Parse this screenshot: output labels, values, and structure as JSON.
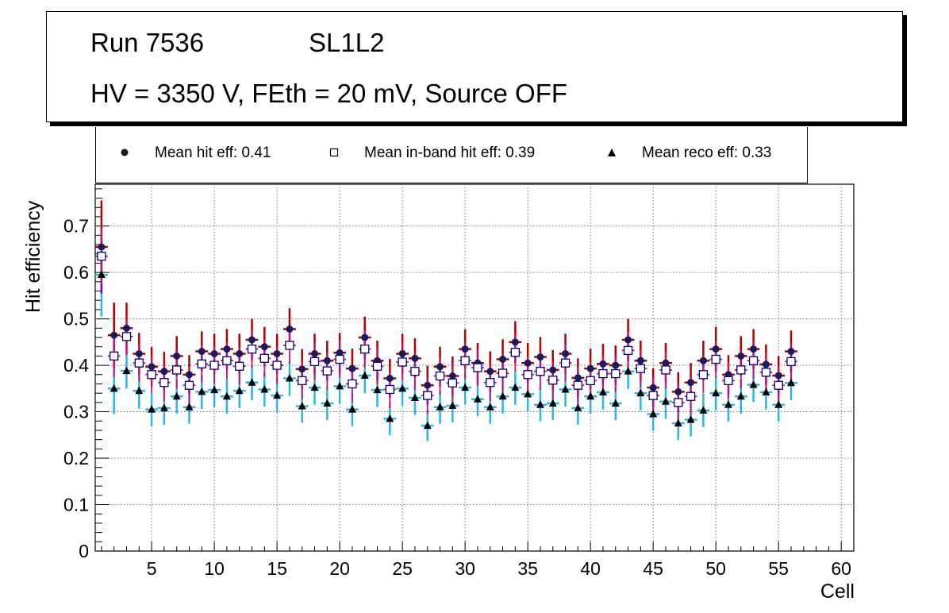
{
  "header": {
    "run": "Run 7536",
    "layer": "SL1L2",
    "conditions": "HV = 3350 V, FEth = 20 mV, Source OFF"
  },
  "legend": {
    "hit": "Mean hit  eff: 0.41",
    "inband": "Mean in-band hit eff: 0.39",
    "reco": "Mean reco eff: 0.33"
  },
  "colors": {
    "hit_marker": "#1a1a60",
    "hit_error": "#b00000",
    "hit_error_low": "#7a00b0",
    "inband_marker_edge": "#00007a",
    "inband_marker_fill": "#ffffff",
    "inband_error": "#d01060",
    "reco_marker": "#000000",
    "reco_error": "#29b6e8"
  },
  "chart_data": {
    "type": "scatter",
    "title": "Run 7536  SL1L2 — HV = 3350 V, FEth = 20 mV, Source OFF",
    "xlabel": "Cell",
    "ylabel": "Hit efficiency",
    "xlim": [
      0.5,
      61
    ],
    "ylim": [
      0,
      0.79
    ],
    "xticks": [
      5,
      10,
      15,
      20,
      25,
      30,
      35,
      40,
      45,
      50,
      55,
      60
    ],
    "yticks": [
      0,
      0.1,
      0.2,
      0.3,
      0.4,
      0.5,
      0.6,
      0.7
    ],
    "grid": true,
    "legend_position": "top",
    "x": [
      1,
      2,
      3,
      4,
      5,
      6,
      7,
      8,
      9,
      10,
      11,
      12,
      13,
      14,
      15,
      16,
      17,
      18,
      19,
      20,
      21,
      22,
      23,
      24,
      25,
      26,
      27,
      28,
      29,
      30,
      31,
      32,
      33,
      34,
      35,
      36,
      37,
      38,
      39,
      40,
      41,
      42,
      43,
      44,
      45,
      46,
      47,
      48,
      49,
      50,
      51,
      52,
      53,
      54,
      55,
      56
    ],
    "series": [
      {
        "name": "Mean hit eff",
        "marker": "filled-circle",
        "values": [
          0.655,
          0.465,
          0.48,
          0.425,
          0.397,
          0.387,
          0.42,
          0.38,
          0.43,
          0.425,
          0.435,
          0.425,
          0.455,
          0.44,
          0.425,
          0.478,
          0.392,
          0.425,
          0.41,
          0.427,
          0.393,
          0.46,
          0.41,
          0.372,
          0.425,
          0.415,
          0.357,
          0.397,
          0.377,
          0.435,
          0.405,
          0.387,
          0.413,
          0.45,
          0.405,
          0.418,
          0.39,
          0.425,
          0.373,
          0.393,
          0.403,
          0.4,
          0.455,
          0.41,
          0.352,
          0.405,
          0.343,
          0.363,
          0.41,
          0.435,
          0.38,
          0.42,
          0.435,
          0.402,
          0.378,
          0.43
        ],
        "err": [
          0.1,
          0.07,
          0.055,
          0.045,
          0.042,
          0.042,
          0.043,
          0.042,
          0.043,
          0.043,
          0.043,
          0.043,
          0.045,
          0.043,
          0.043,
          0.045,
          0.043,
          0.043,
          0.043,
          0.043,
          0.043,
          0.045,
          0.043,
          0.042,
          0.043,
          0.043,
          0.042,
          0.043,
          0.042,
          0.043,
          0.043,
          0.043,
          0.043,
          0.045,
          0.043,
          0.043,
          0.043,
          0.043,
          0.042,
          0.043,
          0.043,
          0.043,
          0.045,
          0.043,
          0.042,
          0.043,
          0.042,
          0.042,
          0.043,
          0.048,
          0.042,
          0.043,
          0.043,
          0.043,
          0.042,
          0.045
        ]
      },
      {
        "name": "Mean in-band hit eff",
        "marker": "open-square",
        "values": [
          0.635,
          0.42,
          0.462,
          0.405,
          0.38,
          0.363,
          0.39,
          0.357,
          0.403,
          0.4,
          0.41,
          0.398,
          0.435,
          0.415,
          0.4,
          0.443,
          0.367,
          0.408,
          0.388,
          0.413,
          0.36,
          0.435,
          0.398,
          0.348,
          0.407,
          0.387,
          0.335,
          0.377,
          0.362,
          0.41,
          0.395,
          0.363,
          0.383,
          0.428,
          0.38,
          0.387,
          0.368,
          0.405,
          0.357,
          0.367,
          0.382,
          0.382,
          0.432,
          0.393,
          0.335,
          0.39,
          0.32,
          0.333,
          0.38,
          0.413,
          0.367,
          0.39,
          0.41,
          0.385,
          0.357,
          0.408
        ],
        "err": [
          0.06,
          0.045,
          0.04,
          0.04,
          0.04,
          0.04,
          0.04,
          0.04,
          0.04,
          0.04,
          0.04,
          0.04,
          0.04,
          0.04,
          0.04,
          0.04,
          0.04,
          0.04,
          0.04,
          0.04,
          0.04,
          0.04,
          0.04,
          0.04,
          0.04,
          0.04,
          0.04,
          0.04,
          0.04,
          0.04,
          0.04,
          0.04,
          0.04,
          0.04,
          0.04,
          0.04,
          0.04,
          0.04,
          0.04,
          0.04,
          0.04,
          0.04,
          0.04,
          0.04,
          0.04,
          0.04,
          0.04,
          0.04,
          0.04,
          0.04,
          0.04,
          0.04,
          0.04,
          0.04,
          0.04,
          0.04
        ]
      },
      {
        "name": "Mean reco eff",
        "marker": "filled-triangle",
        "values": [
          0.595,
          0.35,
          0.388,
          0.345,
          0.305,
          0.308,
          0.333,
          0.31,
          0.343,
          0.347,
          0.333,
          0.345,
          0.363,
          0.348,
          0.335,
          0.372,
          0.312,
          0.352,
          0.318,
          0.355,
          0.305,
          0.378,
          0.347,
          0.285,
          0.35,
          0.33,
          0.27,
          0.31,
          0.313,
          0.352,
          0.327,
          0.31,
          0.333,
          0.352,
          0.338,
          0.315,
          0.318,
          0.348,
          0.308,
          0.333,
          0.342,
          0.318,
          0.387,
          0.34,
          0.295,
          0.322,
          0.275,
          0.283,
          0.303,
          0.34,
          0.315,
          0.333,
          0.358,
          0.342,
          0.315,
          0.362
        ],
        "err": [
          0.09,
          0.055,
          0.038,
          0.038,
          0.036,
          0.036,
          0.037,
          0.036,
          0.037,
          0.037,
          0.037,
          0.037,
          0.038,
          0.037,
          0.037,
          0.038,
          0.036,
          0.037,
          0.036,
          0.037,
          0.036,
          0.038,
          0.037,
          0.036,
          0.037,
          0.037,
          0.033,
          0.036,
          0.036,
          0.037,
          0.037,
          0.036,
          0.037,
          0.037,
          0.037,
          0.036,
          0.036,
          0.037,
          0.036,
          0.037,
          0.037,
          0.036,
          0.038,
          0.037,
          0.036,
          0.037,
          0.036,
          0.036,
          0.036,
          0.037,
          0.036,
          0.037,
          0.037,
          0.037,
          0.036,
          0.037
        ]
      }
    ]
  }
}
